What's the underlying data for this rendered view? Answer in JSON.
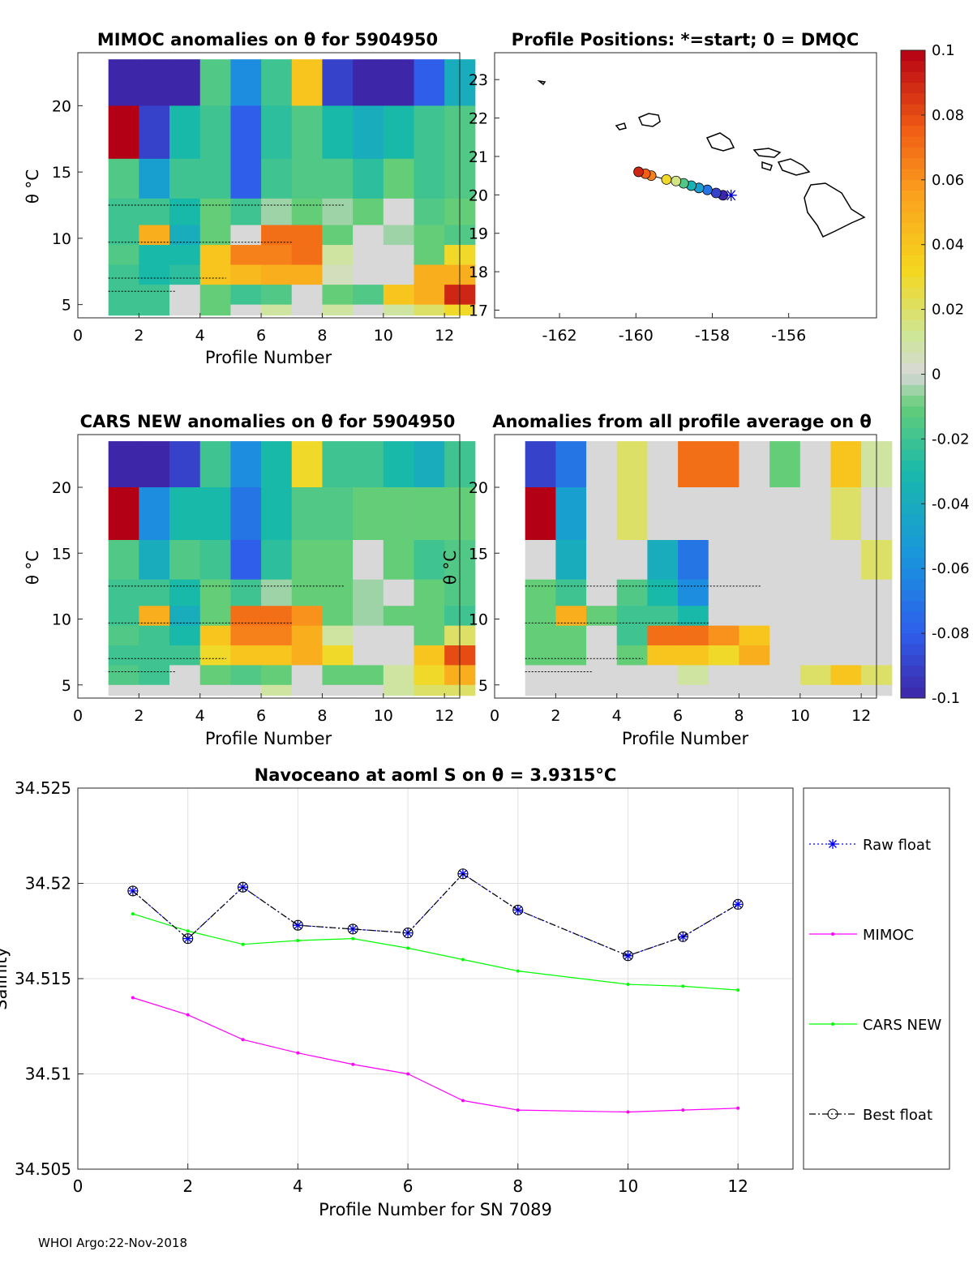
{
  "colorbar": {
    "ticks": [
      "0.1",
      "0.08",
      "0.06",
      "0.04",
      "0.02",
      "0",
      "-0.02",
      "-0.04",
      "-0.06",
      "-0.08",
      "-0.1"
    ],
    "range": [
      -0.1,
      0.1
    ]
  },
  "panels": {
    "mimoc": {
      "title": "MIMOC anomalies on θ  for 5904950",
      "ylabel": "θ °C",
      "xlabel": "Profile Number",
      "xticks": [
        "0",
        "2",
        "4",
        "6",
        "8",
        "10",
        "12"
      ],
      "yticks": [
        "5",
        "10",
        "15",
        "20"
      ]
    },
    "positions": {
      "title": "Profile Positions: *=start; 0 = DMQC",
      "xticks": [
        "-162",
        "-160",
        "-158",
        "-156"
      ],
      "yticks": [
        "17",
        "18",
        "19",
        "20",
        "21",
        "22",
        "23"
      ]
    },
    "cars": {
      "title": "CARS NEW anomalies on θ for 5904950",
      "ylabel": "θ °C",
      "xlabel": "Profile Number",
      "xticks": [
        "0",
        "2",
        "4",
        "6",
        "8",
        "10",
        "12"
      ],
      "yticks": [
        "5",
        "10",
        "15",
        "20"
      ]
    },
    "average": {
      "title": "Anomalies from all profile average on θ",
      "ylabel": "θ °C",
      "xlabel": "Profile Number",
      "xticks": [
        "0",
        "2",
        "4",
        "6",
        "8",
        "10",
        "12"
      ],
      "yticks": [
        "5",
        "10",
        "15",
        "20"
      ]
    }
  },
  "chart_data": [
    {
      "type": "heatmap",
      "title": "MIMOC anomalies on θ  for 5904950",
      "xlabel": "Profile Number",
      "ylabel": "θ °C",
      "xlim": [
        0,
        12.5
      ],
      "ylim": [
        4,
        24
      ],
      "columns": [
        1,
        2,
        3,
        4,
        5,
        6,
        7,
        8,
        9,
        10,
        11,
        12
      ],
      "bands": [
        [
          23.5,
          20
        ],
        [
          20,
          16
        ],
        [
          16,
          13
        ],
        [
          13,
          11
        ],
        [
          11,
          9.5
        ],
        [
          9.5,
          8
        ],
        [
          8,
          6.5
        ],
        [
          6.5,
          5
        ],
        [
          5,
          4.2
        ]
      ],
      "anomaly": [
        [
          -0.1,
          -0.1,
          -0.1,
          -0.015,
          -0.06,
          -0.02,
          0.04,
          -0.09,
          -0.1,
          -0.1,
          -0.08,
          -0.04
        ],
        [
          0.1,
          -0.09,
          -0.03,
          -0.02,
          -0.08,
          -0.025,
          -0.015,
          -0.03,
          -0.04,
          -0.03,
          -0.02,
          -0.015
        ],
        [
          -0.015,
          -0.05,
          -0.02,
          -0.02,
          -0.08,
          -0.02,
          -0.015,
          -0.015,
          -0.025,
          -0.01,
          -0.02,
          -0.015
        ],
        [
          -0.02,
          -0.02,
          -0.03,
          -0.01,
          -0.02,
          -0.005,
          -0.01,
          -0.005,
          -0.01,
          0.0,
          -0.015,
          -0.01
        ],
        [
          -0.02,
          0.05,
          -0.04,
          -0.01,
          0.0,
          0.07,
          0.07,
          -0.01,
          0.0,
          -0.005,
          -0.01,
          -0.015
        ],
        [
          -0.015,
          -0.03,
          -0.03,
          0.04,
          0.065,
          0.065,
          0.07,
          0.01,
          0.0,
          0.0,
          -0.01,
          0.03
        ],
        [
          -0.02,
          -0.03,
          -0.025,
          0.04,
          0.045,
          0.05,
          0.05,
          0.005,
          0.0,
          0.0,
          0.05,
          0.05
        ],
        [
          -0.02,
          -0.02,
          0.0,
          -0.01,
          -0.02,
          -0.015,
          0.0,
          -0.01,
          -0.015,
          0.04,
          0.05,
          0.09
        ],
        [
          -0.02,
          -0.02,
          0.0,
          -0.01,
          0.0,
          0.01,
          0.0,
          0.01,
          0.0,
          0.01,
          0.02,
          0.03
        ]
      ]
    },
    {
      "type": "scatter",
      "title": "Profile Positions: *=start; 0 = DMQC",
      "xlim": [
        -163.7,
        -153.7
      ],
      "ylim": [
        16.8,
        23.7
      ],
      "points": [
        {
          "profile": 1,
          "lon": -157.72,
          "lat": 19.99,
          "value": -0.1
        },
        {
          "profile": 2,
          "lon": -157.9,
          "lat": 20.05,
          "value": -0.09
        },
        {
          "profile": 3,
          "lon": -158.13,
          "lat": 20.13,
          "value": -0.07
        },
        {
          "profile": 4,
          "lon": -158.35,
          "lat": 20.18,
          "value": -0.05
        },
        {
          "profile": 5,
          "lon": -158.55,
          "lat": 20.24,
          "value": -0.035
        },
        {
          "profile": 6,
          "lon": -158.75,
          "lat": 20.3,
          "value": -0.015
        },
        {
          "profile": 7,
          "lon": -158.95,
          "lat": 20.36,
          "value": 0.015
        },
        {
          "profile": 8,
          "lon": -159.2,
          "lat": 20.4,
          "value": 0.03
        },
        {
          "profile": 9,
          "lon": -159.6,
          "lat": 20.5,
          "value": 0.065
        },
        {
          "profile": 10,
          "lon": -159.75,
          "lat": 20.55,
          "value": 0.075
        },
        {
          "profile": 11,
          "lon": -159.93,
          "lat": 20.6,
          "value": 0.09
        }
      ]
    },
    {
      "type": "heatmap",
      "title": "CARS NEW anomalies on θ for 5904950",
      "xlabel": "Profile Number",
      "ylabel": "θ °C",
      "xlim": [
        0,
        12.5
      ],
      "ylim": [
        4,
        24
      ],
      "columns": [
        1,
        2,
        3,
        4,
        5,
        6,
        7,
        8,
        9,
        10,
        11,
        12
      ],
      "bands": [
        [
          23.5,
          20
        ],
        [
          20,
          16
        ],
        [
          16,
          13
        ],
        [
          13,
          11
        ],
        [
          11,
          9.5
        ],
        [
          9.5,
          8
        ],
        [
          8,
          6.5
        ],
        [
          6.5,
          5
        ],
        [
          5,
          4.2
        ]
      ],
      "anomaly": [
        [
          -0.1,
          -0.1,
          -0.09,
          -0.02,
          -0.06,
          -0.03,
          0.03,
          -0.02,
          -0.02,
          -0.03,
          -0.04,
          -0.02
        ],
        [
          0.1,
          -0.06,
          -0.03,
          -0.03,
          -0.07,
          -0.03,
          -0.015,
          -0.015,
          -0.01,
          -0.01,
          -0.01,
          -0.01
        ],
        [
          -0.015,
          -0.04,
          -0.015,
          -0.02,
          -0.08,
          -0.025,
          -0.01,
          -0.01,
          0.0,
          -0.01,
          -0.02,
          -0.015
        ],
        [
          -0.02,
          -0.02,
          -0.03,
          -0.01,
          -0.02,
          -0.005,
          -0.01,
          -0.01,
          -0.005,
          0.0,
          -0.01,
          -0.015
        ],
        [
          -0.02,
          0.05,
          -0.04,
          -0.01,
          0.07,
          0.07,
          0.06,
          -0.01,
          -0.005,
          -0.01,
          -0.01,
          -0.02
        ],
        [
          -0.015,
          -0.02,
          -0.03,
          0.04,
          0.065,
          0.065,
          0.05,
          0.01,
          0.0,
          0.0,
          -0.01,
          0.02
        ],
        [
          -0.02,
          -0.02,
          -0.02,
          0.03,
          0.04,
          0.04,
          0.05,
          0.03,
          0.0,
          0.0,
          0.04,
          0.08
        ],
        [
          -0.015,
          -0.02,
          0.0,
          -0.01,
          -0.015,
          -0.01,
          0.0,
          -0.01,
          -0.01,
          0.01,
          0.03,
          0.05
        ],
        [
          0.0,
          0.0,
          0.0,
          0.0,
          0.0,
          0.01,
          0.0,
          0.0,
          0.0,
          0.01,
          0.02,
          0.02
        ]
      ]
    },
    {
      "type": "heatmap",
      "title": "Anomalies from all profile average on θ",
      "xlabel": "Profile Number",
      "ylabel": "θ °C",
      "xlim": [
        0,
        12.5
      ],
      "ylim": [
        4,
        24
      ],
      "columns": [
        1,
        2,
        3,
        4,
        5,
        6,
        7,
        8,
        9,
        10,
        11,
        12
      ],
      "bands": [
        [
          23.5,
          20
        ],
        [
          20,
          16
        ],
        [
          16,
          13
        ],
        [
          13,
          11
        ],
        [
          11,
          9.5
        ],
        [
          9.5,
          8
        ],
        [
          8,
          6.5
        ],
        [
          6.5,
          5
        ],
        [
          5,
          4.2
        ]
      ],
      "anomaly": [
        [
          -0.09,
          -0.07,
          0.0,
          0.02,
          0.0,
          0.07,
          0.07,
          0.0,
          -0.01,
          0.0,
          0.04,
          0.01
        ],
        [
          0.1,
          -0.05,
          0.0,
          0.02,
          0.0,
          0.0,
          0.0,
          0.0,
          0.0,
          0.0,
          0.02,
          0.0
        ],
        [
          0.0,
          -0.04,
          0.0,
          0.0,
          -0.04,
          -0.07,
          0.0,
          0.0,
          0.0,
          0.0,
          0.0,
          0.02
        ],
        [
          -0.01,
          -0.02,
          0.0,
          -0.015,
          -0.03,
          -0.06,
          0.0,
          0.0,
          0.0,
          0.0,
          0.0,
          0.0
        ],
        [
          -0.01,
          0.05,
          -0.01,
          -0.02,
          -0.02,
          -0.03,
          0.0,
          0.0,
          0.0,
          0.0,
          0.0,
          0.0
        ],
        [
          -0.01,
          -0.01,
          0.0,
          -0.02,
          0.07,
          0.07,
          0.06,
          0.04,
          0.0,
          0.0,
          0.0,
          0.0
        ],
        [
          -0.01,
          -0.01,
          0.0,
          -0.01,
          0.04,
          0.04,
          0.03,
          0.05,
          0.0,
          0.0,
          0.0,
          0.0
        ],
        [
          0.0,
          0.0,
          0.0,
          0.0,
          0.0,
          0.01,
          0.0,
          0.0,
          0.0,
          0.02,
          0.04,
          0.02
        ],
        [
          0.0,
          0.0,
          0.0,
          0.0,
          0.0,
          0.0,
          0.0,
          0.0,
          0.0,
          0.0,
          0.0,
          0.0
        ]
      ]
    },
    {
      "type": "line",
      "title": "Navoceano at aoml S on θ = 3.9315°C",
      "xlabel": "Profile Number for SN 7089",
      "ylabel": "Salinity",
      "xlim": [
        0,
        13
      ],
      "ylim": [
        34.505,
        34.525
      ],
      "xticks": [
        "0",
        "2",
        "4",
        "6",
        "8",
        "10",
        "12"
      ],
      "yticks": [
        "34.505",
        "34.51",
        "34.515",
        "34.52",
        "34.525"
      ],
      "grid": true,
      "legend_position": "outside-right",
      "x": [
        1,
        2,
        3,
        4,
        5,
        6,
        7,
        8,
        10,
        11,
        12
      ],
      "series": [
        {
          "name": "Raw float",
          "color": "#0000ff",
          "values": [
            34.5196,
            34.5171,
            34.5198,
            34.5178,
            34.5176,
            34.5174,
            34.5205,
            34.5186,
            34.5162,
            34.5172,
            34.5189
          ]
        },
        {
          "name": "MIMOC",
          "color": "#ff00ff",
          "values": [
            34.514,
            34.5131,
            34.5118,
            34.5111,
            34.5105,
            34.51,
            34.5086,
            34.5081,
            34.508,
            34.5081,
            34.5082
          ]
        },
        {
          "name": "CARS NEW",
          "color": "#00ff00",
          "values": [
            34.5184,
            34.5175,
            34.5168,
            34.517,
            34.5171,
            34.5166,
            34.516,
            34.5154,
            34.5147,
            34.5146,
            34.5144
          ]
        },
        {
          "name": "Best float",
          "color": "#000000",
          "values": [
            34.5196,
            34.5171,
            34.5198,
            34.5178,
            34.5176,
            34.5174,
            34.5205,
            34.5186,
            34.5162,
            34.5172,
            34.5189
          ]
        }
      ]
    }
  ],
  "footer": "WHOI Argo:22-Nov-2018"
}
